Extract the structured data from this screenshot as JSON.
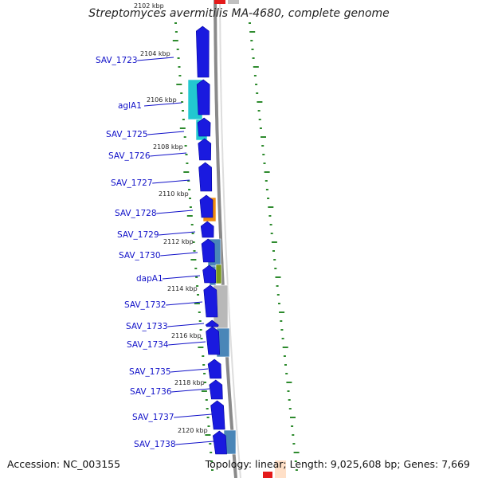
{
  "title": "Streptomyces avermitilis MA-4680, complete genome",
  "accession": "Accession: NC_003155",
  "summary": "Topology: linear; Length: 9,025,608 bp; Genes: 7,669",
  "colors": {
    "cds_forward": "#1a1adf",
    "backbone": "#8a8a8a",
    "gene_label": "#1010c8",
    "gc_marks": "#2e8b2e",
    "cyan": "#22c8d0",
    "orange": "#f08c10",
    "steelblue": "#4a86b8",
    "olive": "#7a9a20",
    "gray": "#b8b8b8"
  },
  "ticks": [
    "2102 kbp",
    "2104 kbp",
    "2106 kbp",
    "2108 kbp",
    "2110 kbp",
    "2112 kbp",
    "2114 kbp",
    "2116 kbp",
    "2118 kbp",
    "2120 kbp"
  ],
  "genes": [
    "SAV_1723",
    "aglA1",
    "SAV_1725",
    "SAV_1726",
    "SAV_1727",
    "SAV_1728",
    "SAV_1729",
    "SAV_1730",
    "dapA1",
    "SAV_1732",
    "SAV_1733",
    "SAV_1734",
    "SAV_1735",
    "SAV_1736",
    "SAV_1737",
    "SAV_1738"
  ]
}
